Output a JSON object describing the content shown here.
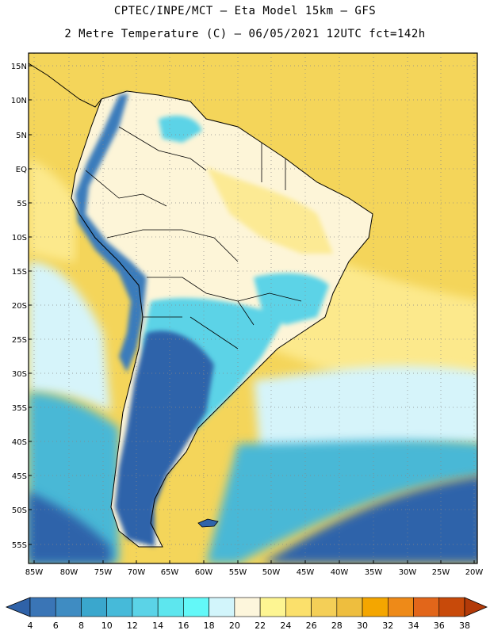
{
  "title_line1": "CPTEC/INPE/MCT –  Eta Model 15km – GFS",
  "title_line2": "2 Metre Temperature (C) – 06/05/2021 12UTC fct=142h",
  "lat_labels": [
    "15N",
    "10N",
    "5N",
    "EQ",
    "5S",
    "10S",
    "15S",
    "20S",
    "25S",
    "30S",
    "35S",
    "40S",
    "45S",
    "50S",
    "55S"
  ],
  "lon_labels": [
    "85W",
    "80W",
    "75W",
    "70W",
    "65W",
    "60W",
    "55W",
    "50W",
    "45W",
    "40W",
    "35W",
    "30W",
    "25W",
    "20W"
  ],
  "colorbar": {
    "labels": [
      "4",
      "6",
      "8",
      "10",
      "12",
      "14",
      "16",
      "18",
      "20",
      "22",
      "24",
      "26",
      "28",
      "30",
      "32",
      "34",
      "36",
      "38"
    ],
    "colors": [
      "#3a75b6",
      "#3f8cc2",
      "#3aa7cd",
      "#46bad9",
      "#5bd3e7",
      "#5de6ee",
      "#63f8f8",
      "#d2f5fb",
      "#fdf6dc",
      "#fdf592",
      "#fbe06b",
      "#f4cf57",
      "#eebe3e",
      "#f4a600",
      "#ee8a18",
      "#e2661a",
      "#c84a0a"
    ],
    "left_arrow_color": "#2f62a8",
    "right_arrow_color": "#b33a08"
  },
  "map_colors": {
    "ocean_warm": "#f4d55a",
    "ocean_mid": "#fce98c",
    "ocean_cool": "#d6f4fa",
    "ocean_cold": "#4ab8d6",
    "ocean_coldest": "#2f64aa",
    "land_hot": "#fdf5d8",
    "land_warm": "#fcea94",
    "andes": "#3b7cbb",
    "patagonia": "#2f64aa",
    "pampas": "#5bd3e7",
    "coast_line": "#000000",
    "grid_line": "#888888"
  }
}
